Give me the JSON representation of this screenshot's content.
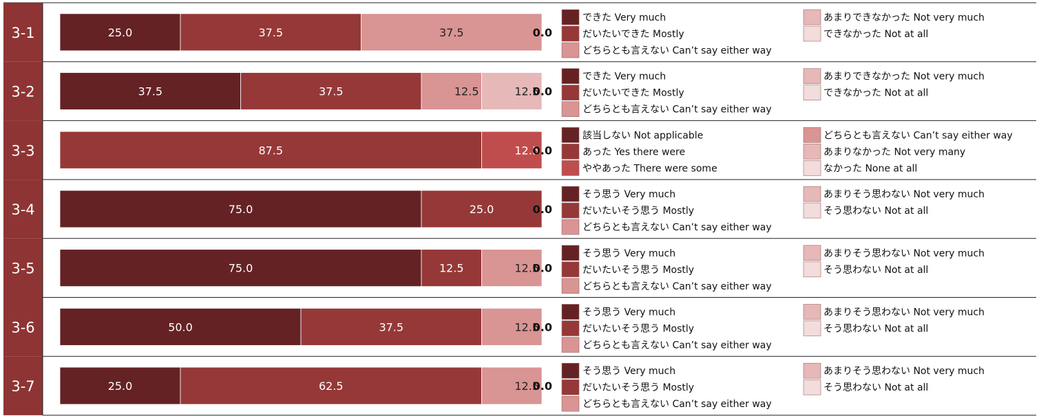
{
  "colors": {
    "label_bg": "#8e3434",
    "label_text": "#ffffff",
    "border": "#222222",
    "scale5": [
      "#652224",
      "#963838",
      "#d99494",
      "#e6b8b8",
      "#f2dcdc"
    ],
    "scale6": [
      "#652224",
      "#963838",
      "#c04d4d",
      "#d99494",
      "#e6b8b8",
      "#f2dcdc"
    ]
  },
  "chart_data": {
    "type": "bar",
    "orientation": "horizontal",
    "stacked": true,
    "unit": "%",
    "xlim": [
      0,
      100
    ],
    "rows": [
      {
        "id": "3-1",
        "series_values": [
          25.0,
          37.5,
          37.5,
          0.0,
          0.0
        ],
        "value_labels": [
          "25.0",
          "37.5",
          "37.5",
          "",
          "0.0"
        ],
        "legend_left": [
          "できた Very much",
          "だいたいできた Mostly",
          "どちらとも言えない Can’t say either way"
        ],
        "legend_right": [
          "あまりできなかった Not very much",
          "できなかった Not at all"
        ]
      },
      {
        "id": "3-2",
        "series_values": [
          37.5,
          37.5,
          12.5,
          12.5,
          0.0
        ],
        "value_labels": [
          "37.5",
          "37.5",
          "12.5",
          "12.5",
          "0.0"
        ],
        "legend_left": [
          "できた Very much",
          "だいたいできた Mostly",
          "どちらとも言えない Can’t say either way"
        ],
        "legend_right": [
          "あまりできなかった Not very much",
          "できなかった Not at all"
        ]
      },
      {
        "id": "3-3",
        "series_values": [
          0.0,
          87.5,
          12.5,
          0.0,
          0.0,
          0.0
        ],
        "value_labels": [
          "0",
          "87.5",
          "12.5",
          "",
          "",
          "0.0"
        ],
        "legend_left": [
          "該当しない Not applicable",
          "あった Yes there were",
          "ややあった There were some"
        ],
        "legend_right": [
          "どちらとも言えない Can’t say either way",
          "あまりなかった Not very many",
          "なかった None at all"
        ]
      },
      {
        "id": "3-4",
        "series_values": [
          75.0,
          25.0,
          0.0,
          0.0,
          0.0
        ],
        "value_labels": [
          "75.0",
          "25.0",
          "",
          "",
          "0.0"
        ],
        "legend_left": [
          "そう思う Very much",
          "だいたいそう思う Mostly",
          "どちらとも言えない Can’t say either way"
        ],
        "legend_right": [
          "あまりそう思わない Not very much",
          "そう思わない Not at all"
        ]
      },
      {
        "id": "3-5",
        "series_values": [
          75.0,
          12.5,
          12.5,
          0.0,
          0.0
        ],
        "value_labels": [
          "75.0",
          "12.5",
          "12.5",
          "",
          "0.0"
        ],
        "legend_left": [
          "そう思う Very much",
          "だいたいそう思う Mostly",
          "どちらとも言えない Can’t say either way"
        ],
        "legend_right": [
          "あまりそう思わない Not very much",
          "そう思わない Not at all"
        ]
      },
      {
        "id": "3-6",
        "series_values": [
          50.0,
          37.5,
          12.5,
          0.0,
          0.0
        ],
        "value_labels": [
          "50.0",
          "37.5",
          "12.5",
          "",
          "0.0"
        ],
        "legend_left": [
          "そう思う Very much",
          "だいたいそう思う Mostly",
          "どちらとも言えない Can’t say either way"
        ],
        "legend_right": [
          "あまりそう思わない Not very much",
          "そう思わない Not at all"
        ]
      },
      {
        "id": "3-7",
        "series_values": [
          25.0,
          62.5,
          12.5,
          0.0,
          0.0
        ],
        "value_labels": [
          "25.0",
          "62.5",
          "12.5",
          "",
          "0.0"
        ],
        "legend_left": [
          "そう思う Very much",
          "だいたいそう思う Mostly",
          "どちらとも言えない Can’t say either way"
        ],
        "legend_right": [
          "あまりそう思わない Not very much",
          "そう思わない Not at all"
        ]
      }
    ]
  }
}
